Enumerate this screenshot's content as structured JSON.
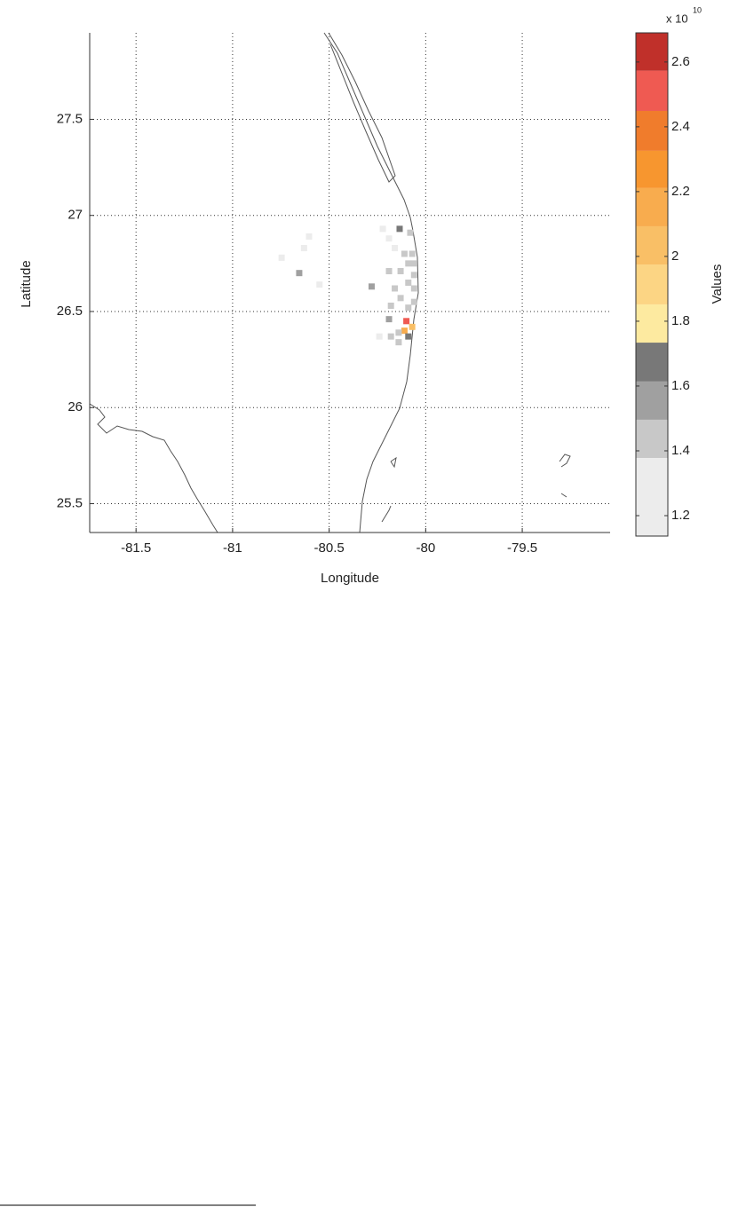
{
  "chart_data": {
    "type": "heatmap",
    "x_label": "Longitude",
    "y_label": "Latitude",
    "xlim": [
      -81.74,
      -79.045
    ],
    "ylim": [
      25.35,
      27.95
    ],
    "xticks": [
      -81.5,
      -81,
      -80.5,
      -80,
      -79.5
    ],
    "yticks": [
      25.5,
      26,
      26.5,
      27,
      27.5
    ],
    "grid": true,
    "x": [
      -80.222,
      -80.135,
      -80.08,
      -80.604,
      -80.63,
      -80.746,
      -80.655,
      -80.55,
      -80.19,
      -80.16,
      -80.11,
      -80.07,
      -80.09,
      -80.06,
      -80.19,
      -80.13,
      -80.06,
      -80.09,
      -80.06,
      -80.28,
      -80.16,
      -80.13,
      -80.06,
      -80.18,
      -80.09,
      -80.19,
      -80.1,
      -80.07,
      -80.11,
      -80.14,
      -80.24,
      -80.18,
      -80.09,
      -80.14
    ],
    "y": [
      26.93,
      26.93,
      26.91,
      26.89,
      26.83,
      26.78,
      26.7,
      26.64,
      26.88,
      26.83,
      26.8,
      26.8,
      26.75,
      26.75,
      26.71,
      26.71,
      26.69,
      26.65,
      26.62,
      26.63,
      26.62,
      26.57,
      26.55,
      26.53,
      26.52,
      26.46,
      26.45,
      26.42,
      26.4,
      26.39,
      26.37,
      26.37,
      26.37,
      26.34
    ],
    "values": [
      1.2,
      1.65,
      1.45,
      1.2,
      1.2,
      1.2,
      1.5,
      1.2,
      1.25,
      1.3,
      1.45,
      1.45,
      1.45,
      1.45,
      1.45,
      1.45,
      1.45,
      1.45,
      1.45,
      1.5,
      1.45,
      1.45,
      1.45,
      1.45,
      1.45,
      1.5,
      2.5,
      2.0,
      2.2,
      1.45,
      1.3,
      1.45,
      1.65,
      1.45
    ],
    "colorbar": {
      "label": "Values",
      "multiplier": "x 10",
      "exponent": "10",
      "lim": [
        1.137,
        2.69
      ],
      "ticks": [
        1.2,
        1.4,
        1.6,
        1.8,
        2,
        2.2,
        2.4,
        2.6
      ],
      "levels": [
        1.137,
        1.378,
        1.496,
        1.614,
        1.734,
        1.852,
        1.975,
        2.093,
        2.211,
        2.326,
        2.449,
        2.573,
        2.69
      ],
      "colors": [
        "#ececec",
        "#c8c8c8",
        "#a0a0a0",
        "#787878",
        "#fdeaa0",
        "#fcd584",
        "#f9bf66",
        "#f8ac4e",
        "#f7962f",
        "#f07c2c",
        "#ef5a52",
        "#c0302a"
      ]
    }
  }
}
